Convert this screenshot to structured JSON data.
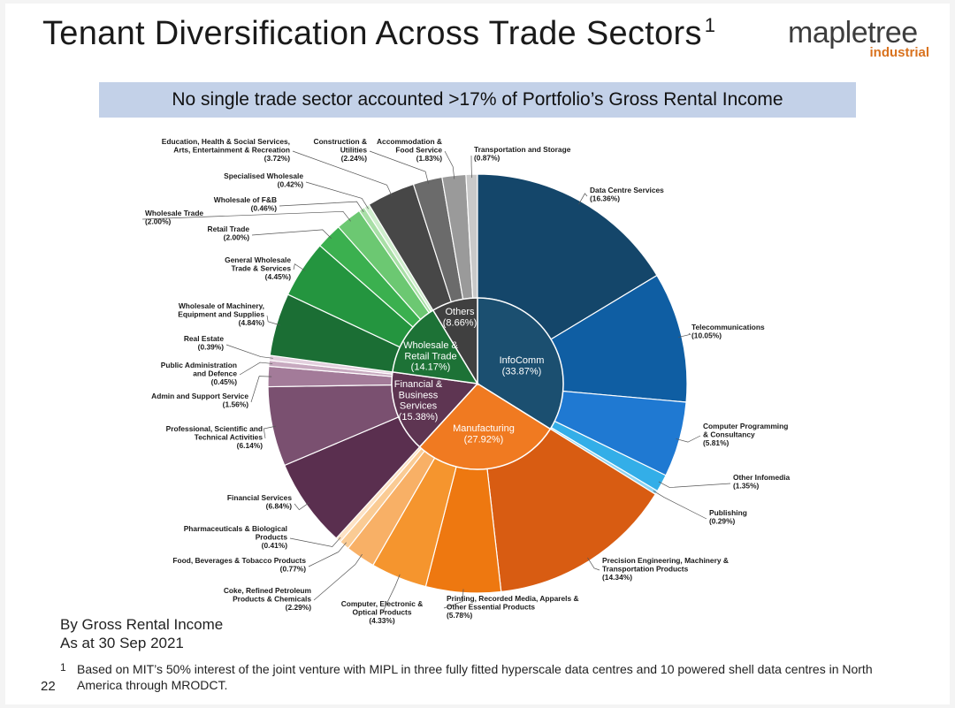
{
  "header": {
    "title": "Tenant Diversification Across Trade Sectors",
    "title_sup": "1",
    "logo_main": "mapletree",
    "logo_sub": "industrial"
  },
  "banner": "No single trade sector accounted >17% of Portfolio’s Gross Rental Income",
  "basis": {
    "line1": "By Gross Rental Income",
    "line2": "As at 30 Sep 2021"
  },
  "footnote": {
    "number": "1",
    "text": "Based on MIT’s 50% interest of the joint venture with MIPL in three fully fitted hyperscale data centres and 10 powered shell data centres in North America through MRODCT."
  },
  "page_number": "22",
  "chart_data": {
    "type": "pie",
    "subtype": "sunburst",
    "inner": [
      {
        "name": "InfoComm",
        "value": 33.87,
        "value_label": "(33.87%)",
        "color": "#1b4f70"
      },
      {
        "name": "Manufacturing",
        "value": 27.92,
        "value_label": "(27.92%)",
        "color": "#f07a21"
      },
      {
        "name": "Financial & Business Services",
        "value": 15.38,
        "value_label": "(15.38%)",
        "color": "#5e3552"
      },
      {
        "name": "Wholesale & Retail Trade",
        "value": 14.17,
        "value_label": "(14.17%)",
        "color": "#1d7236"
      },
      {
        "name": "Others",
        "value": 8.66,
        "value_label": "(8.66%)",
        "color": "#404040"
      }
    ],
    "outer": [
      {
        "name": "Data Centre Services",
        "value": 16.36,
        "value_label": "(16.36%)",
        "group": "InfoComm",
        "color": "#14466a"
      },
      {
        "name": "Telecommunications",
        "value": 10.05,
        "value_label": "(10.05%)",
        "group": "InfoComm",
        "color": "#0f5ea3"
      },
      {
        "name": "Computer Programming & Consultancy",
        "value": 5.81,
        "value_label": "(5.81%)",
        "group": "InfoComm",
        "color": "#1f79d2"
      },
      {
        "name": "Other Infomedia",
        "value": 1.35,
        "value_label": "(1.35%)",
        "group": "InfoComm",
        "color": "#33aee8"
      },
      {
        "name": "Publishing",
        "value": 0.29,
        "value_label": "(0.29%)",
        "group": "InfoComm",
        "color": "#8fd4f2"
      },
      {
        "name": "Precision Engineering, Machinery & Transportation Products",
        "value": 14.34,
        "value_label": "(14.34%)",
        "group": "Manufacturing",
        "color": "#d85c12"
      },
      {
        "name": "Printing, Recorded Media, Apparels & Other Essential Products",
        "value": 5.78,
        "value_label": "(5.78%)",
        "group": "Manufacturing",
        "color": "#ee7810"
      },
      {
        "name": "Computer, Electronic & Optical Products",
        "value": 4.33,
        "value_label": "(4.33%)",
        "group": "Manufacturing",
        "color": "#f5952e"
      },
      {
        "name": "Coke, Refined Petroleum Products & Chemicals",
        "value": 2.29,
        "value_label": "(2.29%)",
        "group": "Manufacturing",
        "color": "#f8b066"
      },
      {
        "name": "Food, Beverages & Tobacco Products",
        "value": 0.77,
        "value_label": "(0.77%)",
        "group": "Manufacturing",
        "color": "#facb94"
      },
      {
        "name": "Pharmaceuticals & Biological Products",
        "value": 0.41,
        "value_label": "(0.41%)",
        "group": "Manufacturing",
        "color": "#fde2c4"
      },
      {
        "name": "Financial Services",
        "value": 6.84,
        "value_label": "(6.84%)",
        "group": "Financial & Business Services",
        "color": "#5a2f4f"
      },
      {
        "name": "Professional, Scientific and Technical Activities",
        "value": 6.14,
        "value_label": "(6.14%)",
        "group": "Financial & Business Services",
        "color": "#7a5070"
      },
      {
        "name": "Admin and Support Service",
        "value": 1.56,
        "value_label": "(1.56%)",
        "group": "Financial & Business Services",
        "color": "#a37b99"
      },
      {
        "name": "Public Administration and Defence",
        "value": 0.45,
        "value_label": "(0.45%)",
        "group": "Financial & Business Services",
        "color": "#c7a9bf"
      },
      {
        "name": "Real Estate",
        "value": 0.39,
        "value_label": "(0.39%)",
        "group": "Financial & Business Services",
        "color": "#e3d0de"
      },
      {
        "name": "Wholesale of Machinery, Equipment and Supplies",
        "value": 4.84,
        "value_label": "(4.84%)",
        "group": "Wholesale & Retail Trade",
        "color": "#1b6e34"
      },
      {
        "name": "General Wholesale Trade & Services",
        "value": 4.45,
        "value_label": "(4.45%)",
        "group": "Wholesale & Retail Trade",
        "color": "#24953f"
      },
      {
        "name": "Retail Trade",
        "value": 2.0,
        "value_label": "(2.00%)",
        "group": "Wholesale & Retail Trade",
        "color": "#3bb04f"
      },
      {
        "name": "Wholesale Trade",
        "value": 2.0,
        "value_label": "(2.00%)",
        "group": "Wholesale & Retail Trade",
        "color": "#6cc872"
      },
      {
        "name": "Wholesale of F&B",
        "value": 0.46,
        "value_label": "(0.46%)",
        "group": "Wholesale & Retail Trade",
        "color": "#a8dfa6"
      },
      {
        "name": "Specialised Wholesale",
        "value": 0.42,
        "value_label": "(0.42%)",
        "group": "Wholesale & Retail Trade",
        "color": "#cfeecd"
      },
      {
        "name": "Education, Health & Social Services, Arts, Entertainment & Recreation",
        "value": 3.72,
        "value_label": "(3.72%)",
        "group": "Others",
        "color": "#474747"
      },
      {
        "name": "Construction & Utilities",
        "value": 2.24,
        "value_label": "(2.24%)",
        "group": "Others",
        "color": "#6b6b6b"
      },
      {
        "name": "Accommodation & Food Service",
        "value": 1.83,
        "value_label": "(1.83%)",
        "group": "Others",
        "color": "#9a9a9a"
      },
      {
        "name": "Transportation and Storage",
        "value": 0.87,
        "value_label": "(0.87%)",
        "group": "Others",
        "color": "#c9c9c9"
      }
    ]
  }
}
